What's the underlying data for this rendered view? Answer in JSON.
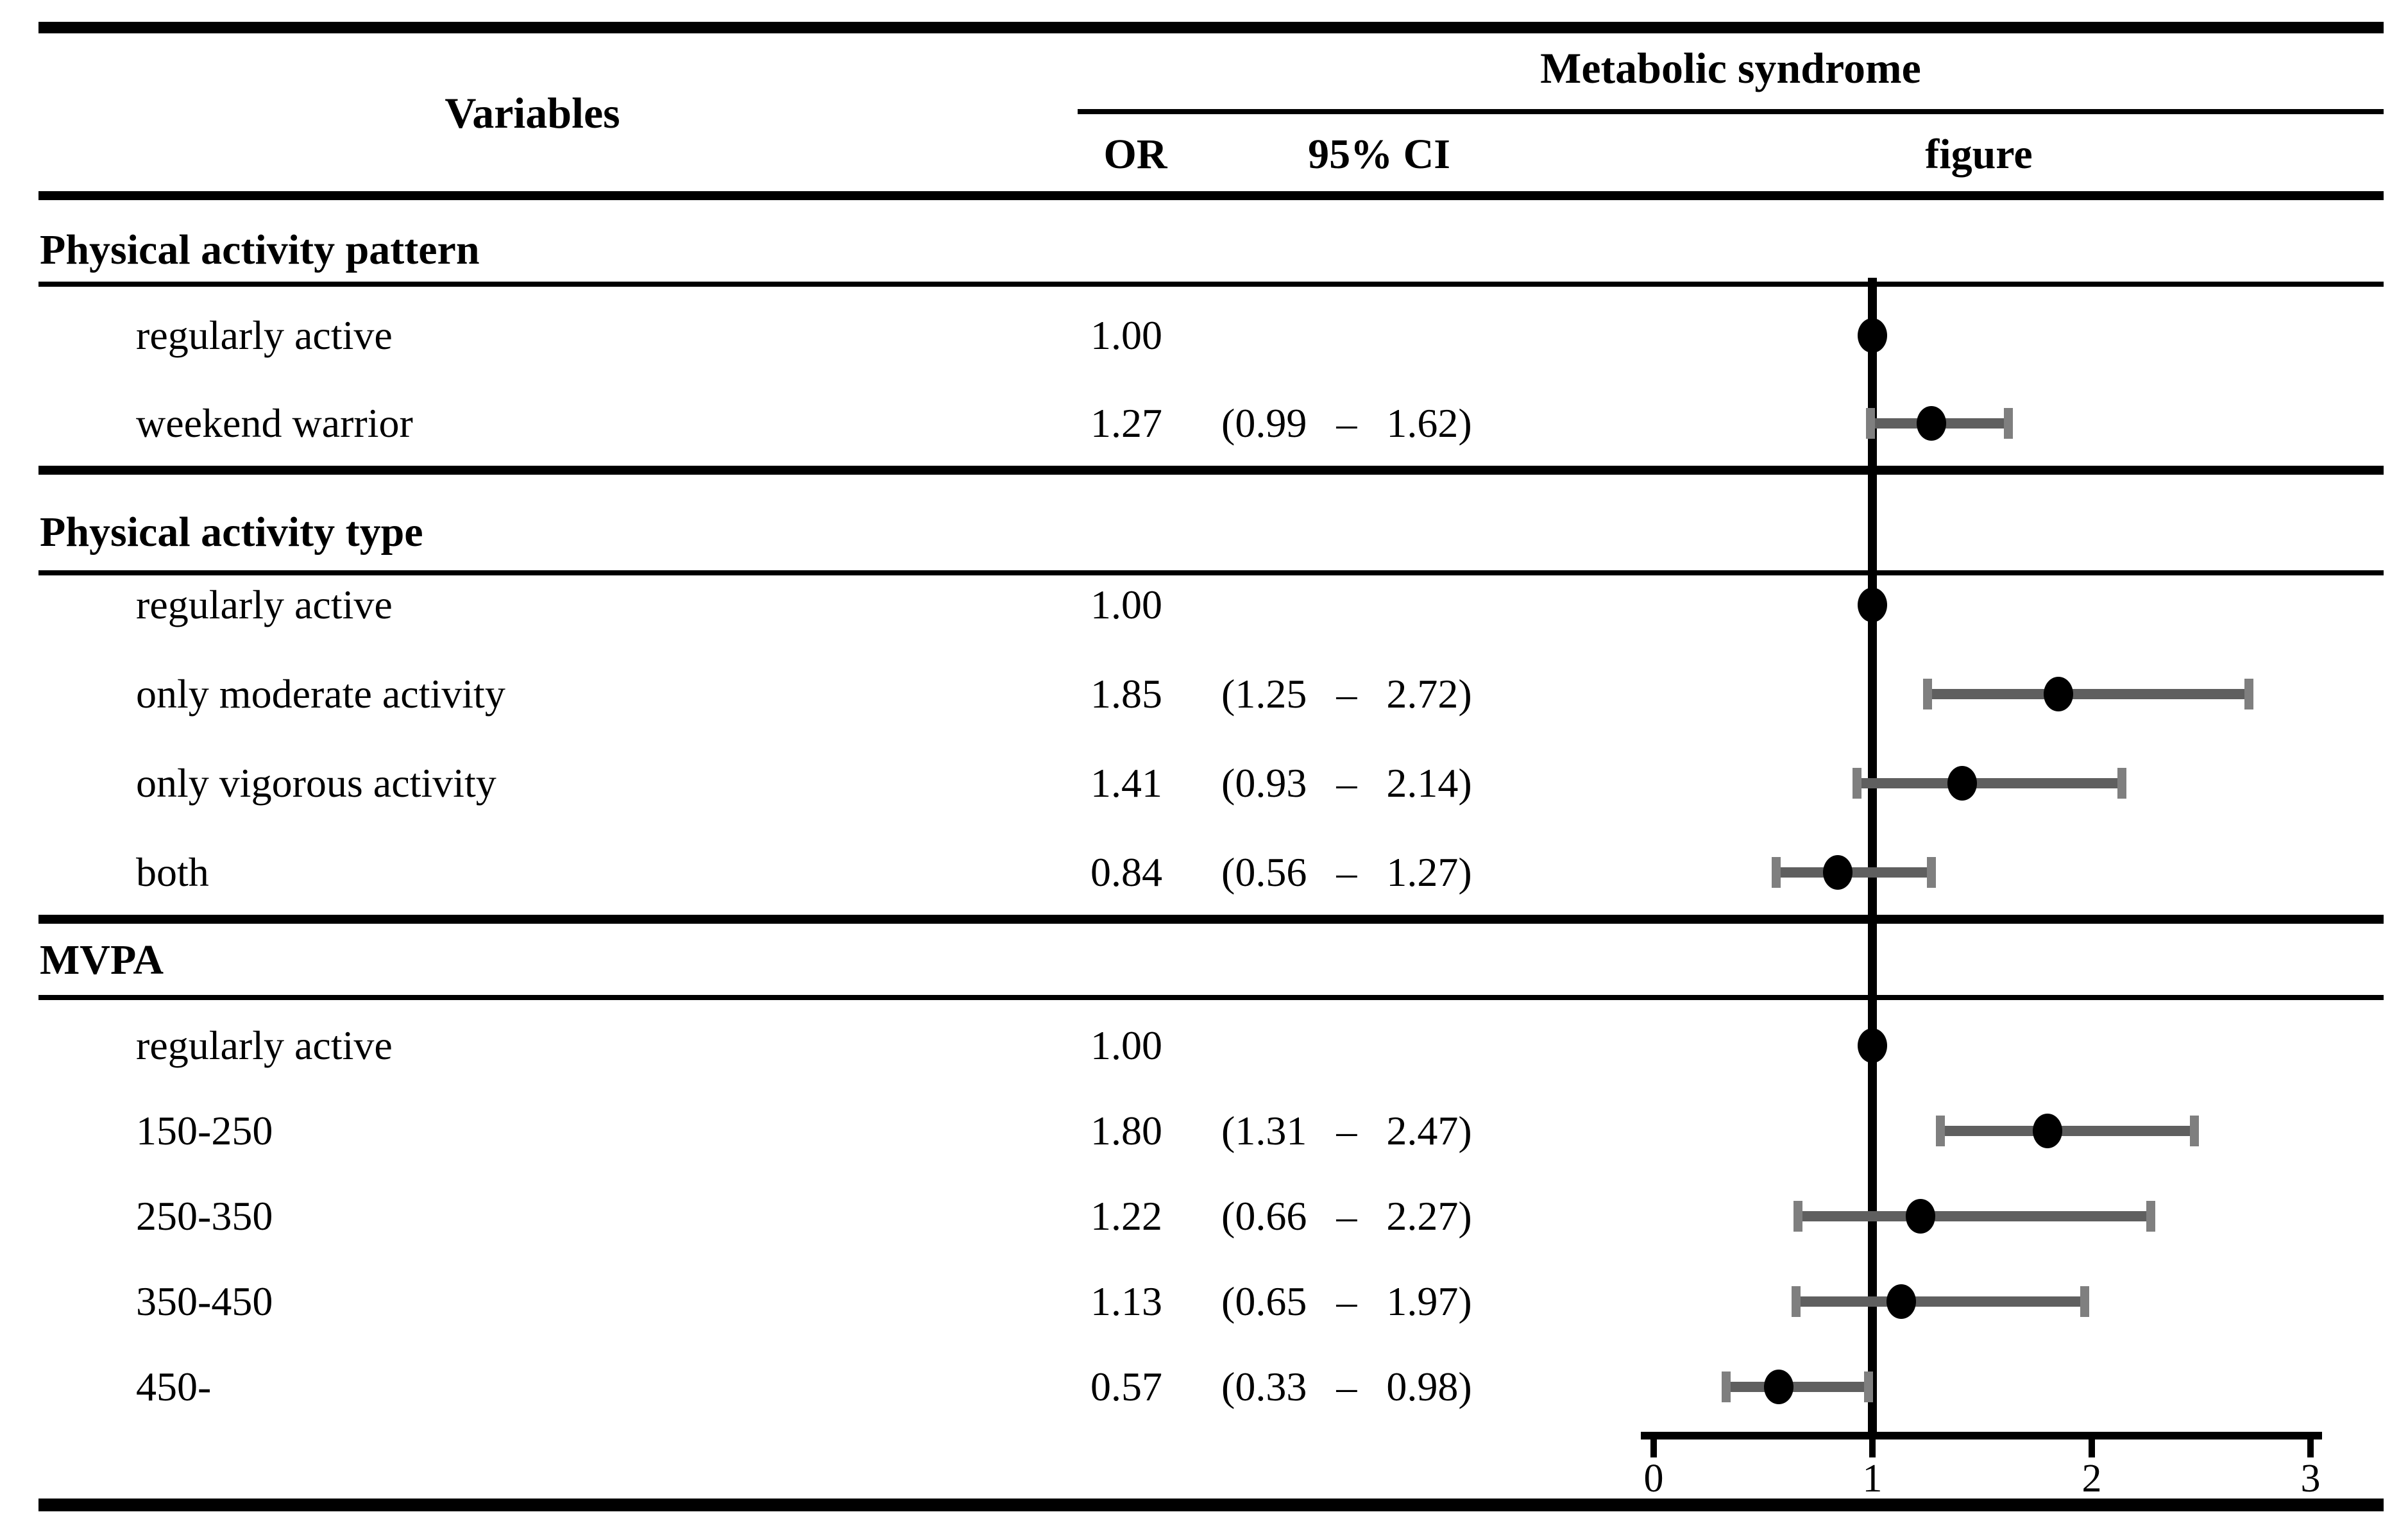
{
  "header": {
    "variables": "Variables",
    "group": "Metabolic syndrome",
    "or": "OR",
    "ci": "95% CI",
    "figure": "figure"
  },
  "sections": [
    {
      "title": "Physical activity pattern",
      "rows": [
        {
          "label": "regularly active",
          "or": "1.00",
          "ci": ""
        },
        {
          "label": "weekend warrior",
          "or": "1.27",
          "ci": "(0.99 – 1.62)"
        }
      ]
    },
    {
      "title": "Physical activity type",
      "rows": [
        {
          "label": "regularly active",
          "or": "1.00",
          "ci": ""
        },
        {
          "label": "only moderate activity",
          "or": "1.85",
          "ci": "(1.25 – 2.72)"
        },
        {
          "label": "only vigorous activity",
          "or": "1.41",
          "ci": "(0.93 – 2.14)"
        },
        {
          "label": "both",
          "or": "0.84",
          "ci": "(0.56 – 1.27)"
        }
      ]
    },
    {
      "title": "MVPA",
      "rows": [
        {
          "label": "regularly active",
          "or": "1.00",
          "ci": ""
        },
        {
          "label": "150-250",
          "or": "1.80",
          "ci": "(1.31 – 2.47)"
        },
        {
          "label": "250-350",
          "or": "1.22",
          "ci": "(0.66 – 2.27)"
        },
        {
          "label": "350-450",
          "or": "1.13",
          "ci": "(0.65 – 1.97)"
        },
        {
          "label": "450-",
          "or": "0.57",
          "ci": "(0.33 – 0.98)"
        }
      ]
    }
  ],
  "colors": {
    "marker": "#000000",
    "ci_bar": "#5f5f5f",
    "ci_cap": "#7f7f7f",
    "line": "#000000",
    "background": "#ffffff"
  },
  "chart_data": {
    "type": "forest",
    "title": "Metabolic syndrome",
    "xlabel": "",
    "ylabel": "",
    "xlim": [
      0,
      3
    ],
    "x_tick_labels": [
      "0",
      "1",
      "2",
      "3"
    ],
    "reference_line": 1,
    "grid": false,
    "legend": "none",
    "points": [
      {
        "group": "Physical activity pattern",
        "label": "regularly active",
        "or": 1.0,
        "ci_low": null,
        "ci_high": null
      },
      {
        "group": "Physical activity pattern",
        "label": "weekend warrior",
        "or": 1.27,
        "ci_low": 0.99,
        "ci_high": 1.62
      },
      {
        "group": "Physical activity type",
        "label": "regularly active",
        "or": 1.0,
        "ci_low": null,
        "ci_high": null
      },
      {
        "group": "Physical activity type",
        "label": "only moderate activity",
        "or": 1.85,
        "ci_low": 1.25,
        "ci_high": 2.72
      },
      {
        "group": "Physical activity type",
        "label": "only vigorous activity",
        "or": 1.41,
        "ci_low": 0.93,
        "ci_high": 2.14
      },
      {
        "group": "Physical activity type",
        "label": "both",
        "or": 0.84,
        "ci_low": 0.56,
        "ci_high": 1.27
      },
      {
        "group": "MVPA",
        "label": "regularly active",
        "or": 1.0,
        "ci_low": null,
        "ci_high": null
      },
      {
        "group": "MVPA",
        "label": "150-250",
        "or": 1.8,
        "ci_low": 1.31,
        "ci_high": 2.47
      },
      {
        "group": "MVPA",
        "label": "250-350",
        "or": 1.22,
        "ci_low": 0.66,
        "ci_high": 2.27
      },
      {
        "group": "MVPA",
        "label": "350-450",
        "or": 1.13,
        "ci_low": 0.65,
        "ci_high": 1.97
      },
      {
        "group": "MVPA",
        "label": "450-",
        "or": 0.57,
        "ci_low": 0.33,
        "ci_high": 0.98
      }
    ]
  }
}
